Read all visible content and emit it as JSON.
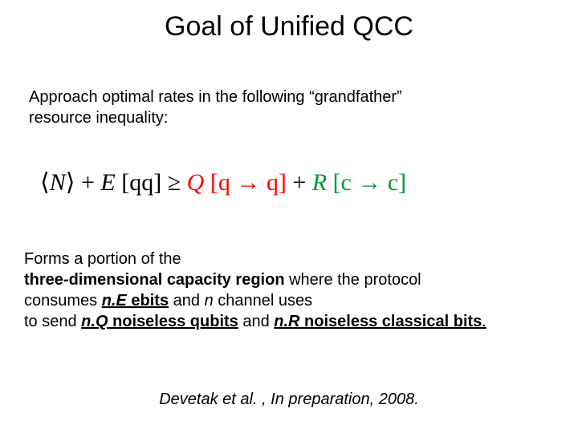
{
  "title": "Goal of Unified QCC",
  "intro_line1": "Approach optimal rates in the following “grandfather”",
  "intro_line2": "resource inequality:",
  "equation": {
    "parts": {
      "lang": "⟨",
      "N": "N",
      "rang": "⟩",
      "plus": " + ",
      "E": "E",
      "Ebr": " [qq]",
      "geq": " ≥ ",
      "Q": "Q",
      "Qbr": " [q → q]",
      "plus2": " + ",
      "R": "R",
      "Rbr": " [c → c]"
    },
    "colors": {
      "black": "#000000",
      "red": "#ff0000",
      "green": "#009933"
    }
  },
  "body": {
    "l1": "Forms a portion of the",
    "l2a": "three-dimensional capacity region",
    "l2b": " where the protocol",
    "l3a": "consumes ",
    "l3b_i": "n.E",
    "l3b_rest": " ebits",
    "l3c": " and ",
    "l3d": "n",
    "l3e": " channel uses",
    "l4a": "to send ",
    "l4b_i": "n.Q",
    "l4b_rest": " noiseless qubits",
    "l4c": " and ",
    "l4d_i": "n.R",
    "l4d_rest": " noiseless classical bits",
    "l4e": "."
  },
  "citation": "Devetak et al. , In preparation, 2008.",
  "typography": {
    "title_fontsize": 34,
    "body_fontsize": 20,
    "equation_fontsize": 30,
    "font_family_body": "Arial",
    "font_family_eq": "Times New Roman"
  },
  "background_color": "#ffffff"
}
